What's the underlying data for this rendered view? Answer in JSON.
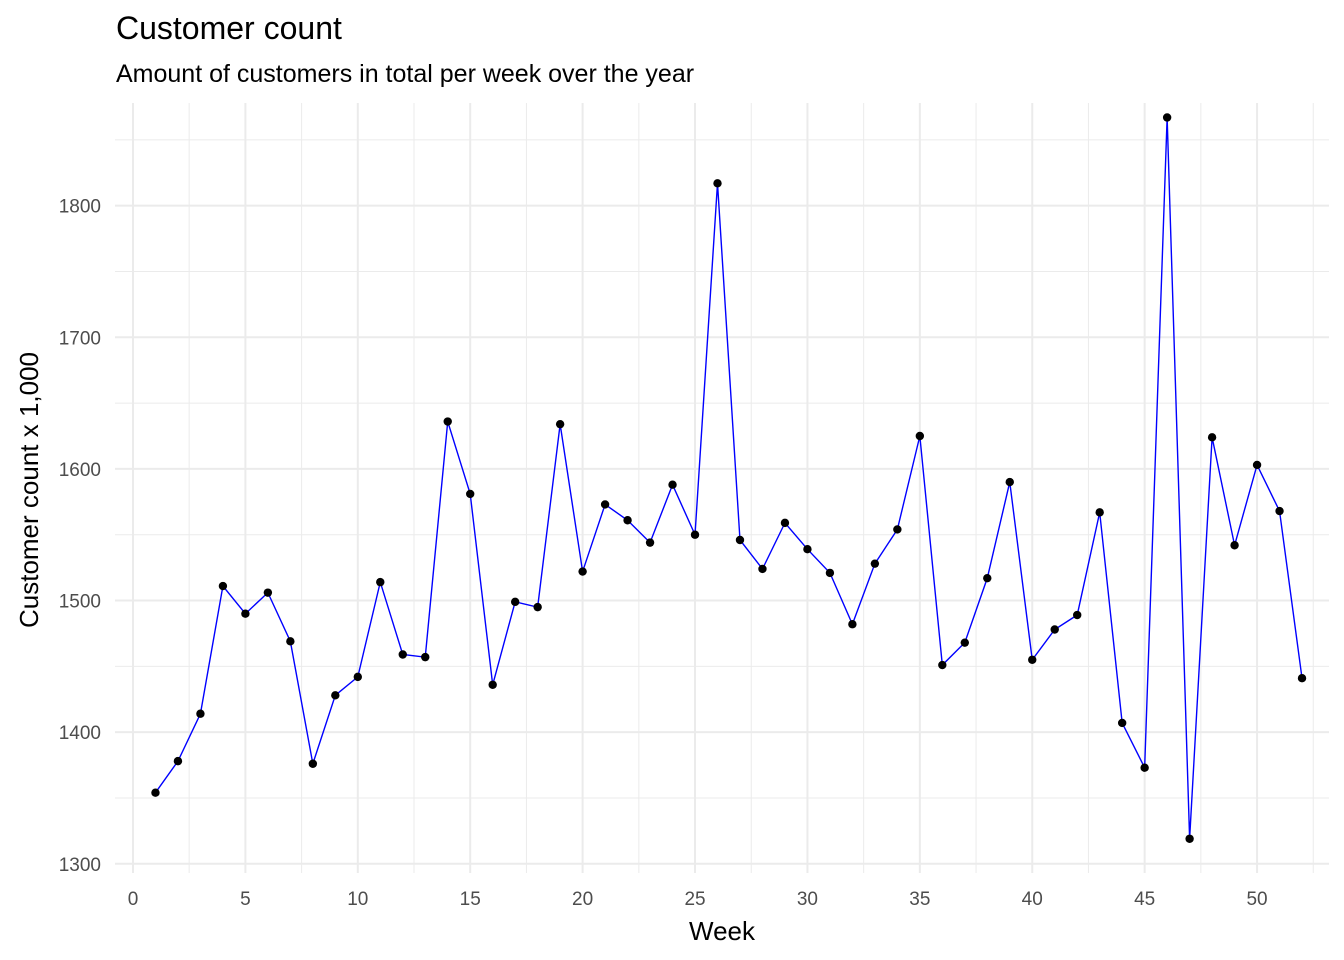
{
  "chart_data": {
    "type": "line",
    "title": "Customer count",
    "subtitle": "Amount of customers in total per week over the year",
    "xlabel": "Week",
    "ylabel": "Customer count x 1,000",
    "xlim": [
      -0.8,
      53.2
    ],
    "ylim": [
      1293,
      1878
    ],
    "x_ticks": [
      0,
      5,
      10,
      15,
      20,
      25,
      30,
      35,
      40,
      45,
      50
    ],
    "y_ticks": [
      1300,
      1400,
      1500,
      1600,
      1700,
      1800
    ],
    "grid": true,
    "line_color": "#0000ff",
    "point_color": "#000000",
    "grid_color": "#ebebeb",
    "series": [
      {
        "x": [
          1,
          2,
          3,
          4,
          5,
          6,
          7,
          8,
          9,
          10,
          11,
          12,
          13,
          14,
          15,
          16,
          17,
          18,
          19,
          20,
          21,
          22,
          23,
          24,
          25,
          26,
          27,
          28,
          29,
          30,
          31,
          32,
          33,
          34,
          35,
          36,
          37,
          38,
          39,
          40,
          41,
          42,
          43,
          44,
          45,
          46,
          47,
          48,
          49,
          50,
          51,
          52
        ],
        "values": [
          1354,
          1378,
          1414,
          1511,
          1490,
          1506,
          1469,
          1376,
          1428,
          1442,
          1514,
          1459,
          1457,
          1636,
          1581,
          1436,
          1499,
          1495,
          1634,
          1522,
          1573,
          1561,
          1544,
          1588,
          1550,
          1817,
          1546,
          1524,
          1559,
          1539,
          1521,
          1482,
          1528,
          1554,
          1625,
          1451,
          1468,
          1517,
          1590,
          1455,
          1478,
          1489,
          1567,
          1407,
          1373,
          1867,
          1319,
          1624,
          1542,
          1603,
          1568,
          1441
        ]
      }
    ]
  }
}
